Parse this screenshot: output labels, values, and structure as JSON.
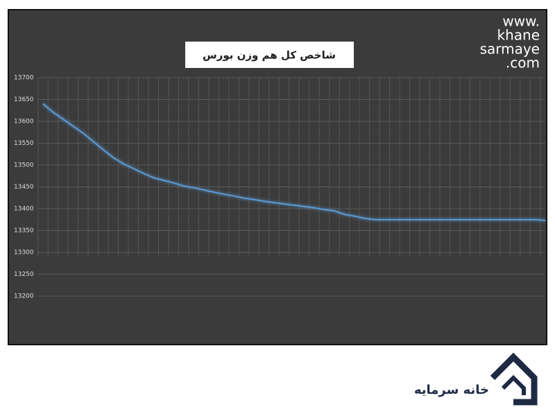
{
  "chart_data": {
    "type": "line",
    "title": "شاخص کل هم وزن بورس",
    "categories": [
      null,
      null,
      null,
      null,
      null,
      null,
      null,
      null,
      null,
      null,
      null,
      null,
      null,
      null,
      null,
      null,
      null,
      null,
      null,
      null,
      null,
      null,
      null,
      null,
      null,
      null,
      null,
      null,
      null,
      null,
      null,
      null,
      null,
      null,
      null,
      null,
      null,
      null,
      null,
      null,
      null,
      null,
      null,
      null,
      null,
      null,
      null,
      null,
      null,
      null,
      null
    ],
    "series": [
      {
        "name": null,
        "color": "#5b9bd5",
        "values": [
          13640,
          13621,
          13605,
          13589,
          13573,
          13554,
          13535,
          13517,
          13503,
          13492,
          13481,
          13471,
          13465,
          13459,
          13452,
          13448,
          13443,
          13438,
          13433,
          13429,
          13424,
          13421,
          13417,
          13414,
          13411,
          13408,
          13405,
          13402,
          13398,
          13395,
          13387,
          13383,
          13378,
          13375,
          13375,
          13375,
          13375,
          13375,
          13375,
          13375,
          13375,
          13375,
          13375,
          13375,
          13375,
          13375,
          13375,
          13375,
          13375,
          13375,
          13373
        ]
      }
    ],
    "ylim": [
      13100,
      13700
    ],
    "yticks": [
      13200,
      13250,
      13300,
      13350,
      13400,
      13450,
      13500,
      13550,
      13600,
      13650,
      13700
    ],
    "grid": true
  },
  "watermark": [
    "www.",
    "khane",
    "sarmaye",
    ".com"
  ],
  "logo": "خانه سرمایه"
}
